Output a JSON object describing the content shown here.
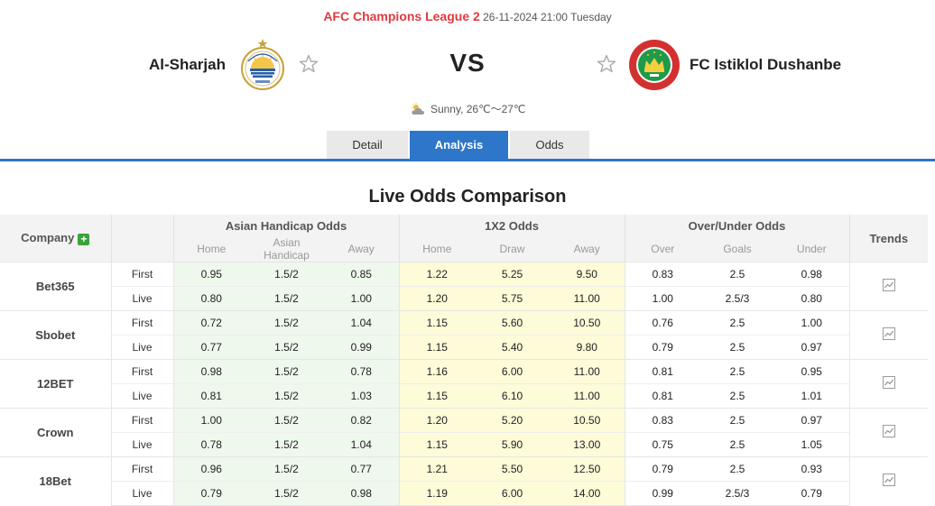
{
  "match": {
    "league": "AFC Champions League 2",
    "datetime": "26-11-2024 21:00 Tuesday",
    "home_team": "Al-Sharjah",
    "away_team": "FC Istiklol Dushanbe",
    "vs": "VS",
    "weather": "Sunny, 26℃～27℃"
  },
  "tabs": [
    "Detail",
    "Analysis",
    "Odds"
  ],
  "active_tab": "Analysis",
  "section_title": "Live Odds Comparison",
  "table": {
    "company_header": "Company",
    "groups": [
      "Asian Handicap Odds",
      "1X2 Odds",
      "Over/Under Odds"
    ],
    "trends_header": "Trends",
    "subheaders": {
      "ah": [
        "Home",
        "Asian Handicap",
        "Away"
      ],
      "x12": [
        "Home",
        "Draw",
        "Away"
      ],
      "ou": [
        "Over",
        "Goals",
        "Under"
      ]
    },
    "companies": [
      {
        "name": "Bet365",
        "rows": [
          {
            "type": "First",
            "ah": [
              "0.95",
              "1.5/2",
              "0.85"
            ],
            "x12": [
              "1.22",
              "5.25",
              "9.50"
            ],
            "ou": [
              "0.83",
              "2.5",
              "0.98"
            ]
          },
          {
            "type": "Live",
            "ah": [
              "0.80",
              "1.5/2",
              "1.00"
            ],
            "x12": [
              "1.20",
              "5.75",
              "11.00"
            ],
            "ou": [
              "1.00",
              "2.5/3",
              "0.80"
            ]
          }
        ]
      },
      {
        "name": "Sbobet",
        "rows": [
          {
            "type": "First",
            "ah": [
              "0.72",
              "1.5/2",
              "1.04"
            ],
            "x12": [
              "1.15",
              "5.60",
              "10.50"
            ],
            "ou": [
              "0.76",
              "2.5",
              "1.00"
            ]
          },
          {
            "type": "Live",
            "ah": [
              "0.77",
              "1.5/2",
              "0.99"
            ],
            "x12": [
              "1.15",
              "5.40",
              "9.80"
            ],
            "ou": [
              "0.79",
              "2.5",
              "0.97"
            ]
          }
        ]
      },
      {
        "name": "12BET",
        "rows": [
          {
            "type": "First",
            "ah": [
              "0.98",
              "1.5/2",
              "0.78"
            ],
            "x12": [
              "1.16",
              "6.00",
              "11.00"
            ],
            "ou": [
              "0.81",
              "2.5",
              "0.95"
            ]
          },
          {
            "type": "Live",
            "ah": [
              "0.81",
              "1.5/2",
              "1.03"
            ],
            "x12": [
              "1.15",
              "6.10",
              "11.00"
            ],
            "ou": [
              "0.81",
              "2.5",
              "1.01"
            ]
          }
        ]
      },
      {
        "name": "Crown",
        "rows": [
          {
            "type": "First",
            "ah": [
              "1.00",
              "1.5/2",
              "0.82"
            ],
            "x12": [
              "1.20",
              "5.20",
              "10.50"
            ],
            "ou": [
              "0.83",
              "2.5",
              "0.97"
            ]
          },
          {
            "type": "Live",
            "ah": [
              "0.78",
              "1.5/2",
              "1.04"
            ],
            "x12": [
              "1.15",
              "5.90",
              "13.00"
            ],
            "ou": [
              "0.75",
              "2.5",
              "1.05"
            ]
          }
        ]
      },
      {
        "name": "18Bet",
        "rows": [
          {
            "type": "First",
            "ah": [
              "0.96",
              "1.5/2",
              "0.77"
            ],
            "x12": [
              "1.21",
              "5.50",
              "12.50"
            ],
            "ou": [
              "0.79",
              "2.5",
              "0.93"
            ]
          },
          {
            "type": "Live",
            "ah": [
              "0.79",
              "1.5/2",
              "0.98"
            ],
            "x12": [
              "1.19",
              "6.00",
              "14.00"
            ],
            "ou": [
              "0.99",
              "2.5/3",
              "0.79"
            ]
          }
        ]
      }
    ]
  },
  "colors": {
    "league": "#e03a3e",
    "accent": "#2e76c9",
    "ah_bg": "#eef8ec",
    "x12_bg": "#fdfbd8",
    "add_button": "#3aa43a"
  },
  "icons": {
    "star": "star-outline-icon",
    "weather": "partly-cloudy-icon",
    "trend": "trend-chart-icon",
    "add": "plus-icon"
  }
}
